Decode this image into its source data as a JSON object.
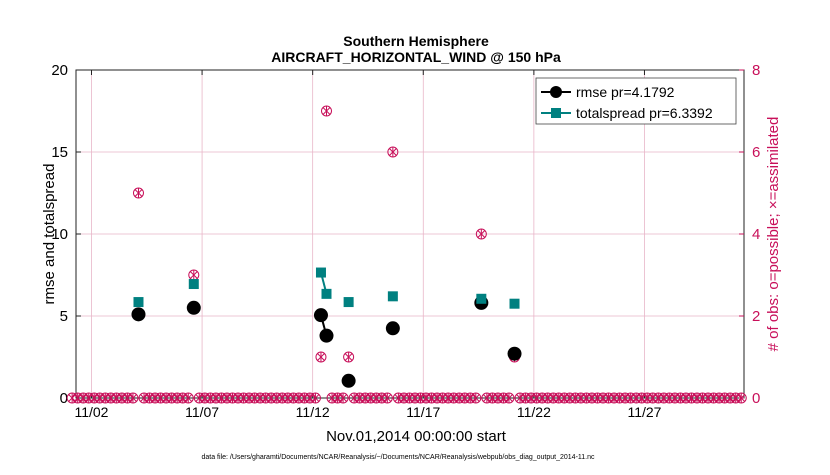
{
  "chart_data": {
    "type": "line",
    "title": "Southern Hemisphere",
    "subtitle": "AIRCRAFT_HORIZONTAL_WIND @ 150 hPa",
    "xlabel": "Nov.01,2014 00:00:00 start",
    "ylabel": "rmse and totalspread",
    "y2label": "# of obs: o=possible; ×=assimilated",
    "footnote": "data file: /Users/gharamti/Documents/NCAR/Reanalysis/~/Documents/NCAR/Reanalysis/webpub/obs_diag_output_2014-11.nc",
    "xlim": [
      1.3,
      31.5
    ],
    "ylim": [
      0,
      20
    ],
    "y2lim": [
      0,
      8
    ],
    "xticks": [
      2,
      7,
      12,
      17,
      22,
      27
    ],
    "xtick_labels": [
      "11/02",
      "11/07",
      "11/12",
      "11/17",
      "11/22",
      "11/27"
    ],
    "yticks": [
      0,
      5,
      10,
      15,
      20
    ],
    "y2ticks": [
      0,
      2,
      4,
      6,
      8
    ],
    "grid": true,
    "legend_position": "top-right",
    "colors": {
      "rmse": "#000000",
      "totalspread": "#008080",
      "obs": "#c8105a",
      "grid": "#e8b5c8"
    },
    "series": [
      {
        "name": "rmse pr=4.1792",
        "x": [
          4.125,
          6.625,
          12.375,
          12.625,
          13.625,
          15.625,
          19.625,
          21.125
        ],
        "y": [
          5.1,
          5.5,
          5.05,
          3.8,
          1.05,
          4.25,
          5.8,
          2.7
        ],
        "segments": [
          [
            12.375,
            12.625
          ]
        ]
      },
      {
        "name": "totalspread pr=6.3392",
        "x": [
          4.125,
          6.625,
          12.375,
          12.625,
          13.625,
          15.625,
          19.625,
          21.125
        ],
        "y": [
          5.85,
          6.95,
          7.65,
          6.35,
          5.85,
          6.2,
          6.05,
          5.75
        ],
        "segments": [
          [
            12.375,
            12.625
          ]
        ]
      }
    ],
    "obs_count": {
      "x_start": 1.125,
      "x_step": 0.25,
      "x_end": 31.375,
      "nonzero": [
        {
          "x": 4.125,
          "possible": 5,
          "assimilated": 5
        },
        {
          "x": 6.625,
          "possible": 3,
          "assimilated": 3
        },
        {
          "x": 12.375,
          "possible": 1,
          "assimilated": 1
        },
        {
          "x": 12.625,
          "possible": 7,
          "assimilated": 7
        },
        {
          "x": 13.625,
          "possible": 1,
          "assimilated": 1
        },
        {
          "x": 15.625,
          "possible": 6,
          "assimilated": 6
        },
        {
          "x": 19.625,
          "possible": 4,
          "assimilated": 4
        },
        {
          "x": 21.125,
          "possible": 1,
          "assimilated": 1
        }
      ]
    }
  }
}
